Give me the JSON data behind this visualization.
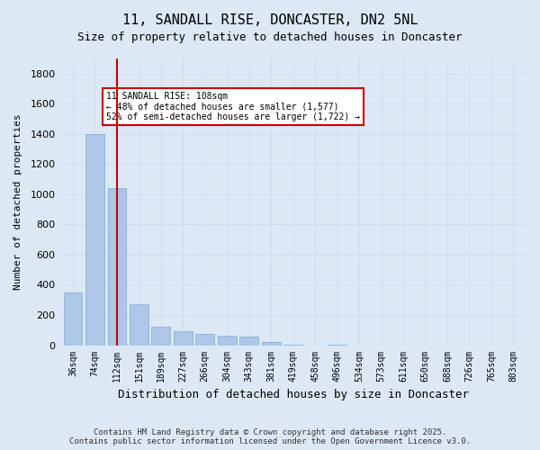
{
  "title_line1": "11, SANDALL RISE, DONCASTER, DN2 5NL",
  "title_line2": "Size of property relative to detached houses in Doncaster",
  "xlabel": "Distribution of detached houses by size in Doncaster",
  "ylabel": "Number of detached properties",
  "categories": [
    "36sqm",
    "74sqm",
    "112sqm",
    "151sqm",
    "189sqm",
    "227sqm",
    "266sqm",
    "304sqm",
    "343sqm",
    "381sqm",
    "419sqm",
    "458sqm",
    "496sqm",
    "534sqm",
    "573sqm",
    "611sqm",
    "650sqm",
    "688sqm",
    "726sqm",
    "765sqm",
    "803sqm"
  ],
  "values": [
    350,
    1400,
    1040,
    270,
    120,
    95,
    75,
    60,
    55,
    20,
    5,
    0,
    5,
    0,
    0,
    0,
    0,
    0,
    0,
    0,
    0
  ],
  "bar_color": "#aec6e8",
  "bar_edgecolor": "#7aadd4",
  "highlight_index": 2,
  "vline_color": "#cc0000",
  "vline_x": 2,
  "annotation_text": "11 SANDALL RISE: 108sqm\n← 48% of detached houses are smaller (1,577)\n52% of semi-detached houses are larger (1,722) →",
  "annotation_box_color": "#ffffff",
  "annotation_box_edgecolor": "#cc0000",
  "ylim": [
    0,
    1900
  ],
  "yticks": [
    0,
    200,
    400,
    600,
    800,
    1000,
    1200,
    1400,
    1600,
    1800
  ],
  "grid_color": "#ccddee",
  "background_color": "#dce9f5",
  "footer": "Contains HM Land Registry data © Crown copyright and database right 2025.\nContains public sector information licensed under the Open Government Licence v3.0."
}
